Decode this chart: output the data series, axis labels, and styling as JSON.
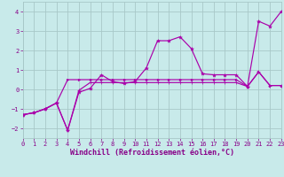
{
  "xlabel": "Windchill (Refroidissement éolien,°C)",
  "xlim": [
    0,
    23
  ],
  "ylim": [
    -2.5,
    4.5
  ],
  "xticks": [
    0,
    1,
    2,
    3,
    4,
    5,
    6,
    7,
    8,
    9,
    10,
    11,
    12,
    13,
    14,
    15,
    16,
    17,
    18,
    19,
    20,
    21,
    22,
    23
  ],
  "yticks": [
    -2,
    -1,
    0,
    1,
    2,
    3,
    4
  ],
  "bg_color": "#c8eaea",
  "grid_color": "#a8c8c8",
  "line_color": "#aa00aa",
  "line1_x": [
    0,
    1,
    2,
    3,
    4,
    5,
    6,
    7,
    8,
    9,
    10,
    11,
    12,
    13,
    14,
    15,
    16,
    17,
    18,
    19,
    20,
    21,
    22,
    23
  ],
  "line1_y": [
    -1.3,
    -1.2,
    -1.0,
    -0.7,
    -2.1,
    -0.15,
    0.05,
    0.75,
    0.4,
    0.3,
    0.4,
    1.1,
    2.5,
    2.5,
    2.7,
    2.1,
    0.8,
    0.75,
    0.75,
    0.75,
    0.15,
    3.5,
    3.25,
    4.0
  ],
  "line2_x": [
    0,
    1,
    2,
    3,
    4,
    5,
    6,
    7,
    8,
    9,
    10,
    11,
    12,
    13,
    14,
    15,
    16,
    17,
    18,
    19,
    20,
    21,
    22,
    23
  ],
  "line2_y": [
    -1.3,
    -1.2,
    -1.0,
    -0.7,
    -2.1,
    -0.05,
    0.35,
    0.35,
    0.35,
    0.35,
    0.35,
    0.35,
    0.35,
    0.35,
    0.35,
    0.35,
    0.35,
    0.35,
    0.35,
    0.35,
    0.15,
    0.9,
    0.2,
    0.2
  ],
  "line3_x": [
    0,
    1,
    2,
    3,
    4,
    5,
    6,
    7,
    8,
    9,
    10,
    11,
    12,
    13,
    14,
    15,
    16,
    17,
    18,
    19,
    20,
    21,
    22,
    23
  ],
  "line3_y": [
    -1.3,
    -1.2,
    -1.0,
    -0.7,
    0.5,
    0.5,
    0.5,
    0.5,
    0.5,
    0.5,
    0.5,
    0.5,
    0.5,
    0.5,
    0.5,
    0.5,
    0.5,
    0.5,
    0.5,
    0.5,
    0.15,
    0.9,
    0.2,
    0.2
  ],
  "font_color": "#880088",
  "tick_fontsize": 5.0,
  "label_fontsize": 6.0
}
